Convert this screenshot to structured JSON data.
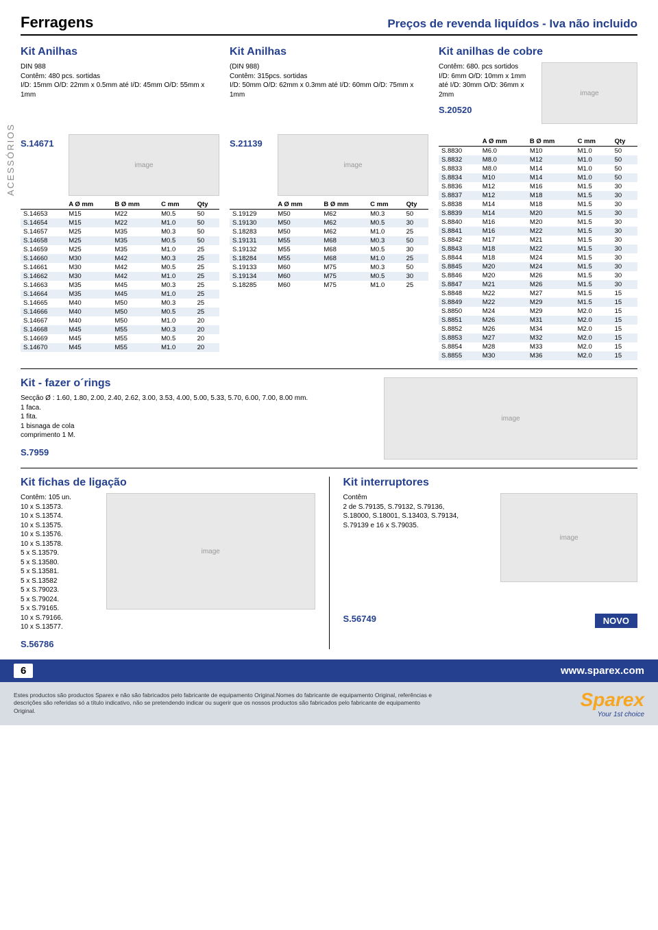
{
  "header": {
    "title": "Ferragens",
    "subtitle": "Preços de revenda liquídos - Iva não incluido"
  },
  "sidebar": "ACESSÓRIOS",
  "kit1": {
    "title": "Kit Anilhas",
    "desc": "DIN 988\nContêm: 480 pcs. sortidas\nI/D: 15mm O/D: 22mm x 0.5mm até I/D: 45mm O/D: 55mm x 1mm",
    "sku": "S.14671",
    "headers": [
      "",
      "A Ø mm",
      "B Ø mm",
      "C mm",
      "Qty"
    ],
    "rows": [
      [
        "S.14653",
        "M15",
        "M22",
        "M0.5",
        "50"
      ],
      [
        "S.14654",
        "M15",
        "M22",
        "M1.0",
        "50"
      ],
      [
        "S.14657",
        "M25",
        "M35",
        "M0.3",
        "50"
      ],
      [
        "S.14658",
        "M25",
        "M35",
        "M0.5",
        "50"
      ],
      [
        "S.14659",
        "M25",
        "M35",
        "M1.0",
        "25"
      ],
      [
        "S.14660",
        "M30",
        "M42",
        "M0.3",
        "25"
      ],
      [
        "S.14661",
        "M30",
        "M42",
        "M0.5",
        "25"
      ],
      [
        "S.14662",
        "M30",
        "M42",
        "M1.0",
        "25"
      ],
      [
        "S.14663",
        "M35",
        "M45",
        "M0.3",
        "25"
      ],
      [
        "S.14664",
        "M35",
        "M45",
        "M1.0",
        "25"
      ],
      [
        "S.14665",
        "M40",
        "M50",
        "M0.3",
        "25"
      ],
      [
        "S.14666",
        "M40",
        "M50",
        "M0.5",
        "25"
      ],
      [
        "S.14667",
        "M40",
        "M50",
        "M1.0",
        "20"
      ],
      [
        "S.14668",
        "M45",
        "M55",
        "M0.3",
        "20"
      ],
      [
        "S.14669",
        "M45",
        "M55",
        "M0.5",
        "20"
      ],
      [
        "S.14670",
        "M45",
        "M55",
        "M1.0",
        "20"
      ]
    ]
  },
  "kit2": {
    "title": "Kit Anilhas",
    "desc": "(DIN 988)\nContêm: 315pcs. sortidas\nI/D: 50mm O/D: 62mm x 0.3mm até I/D: 60mm O/D: 75mm x 1mm",
    "sku": "S.21139",
    "headers": [
      "",
      "A Ø mm",
      "B Ø mm",
      "C mm",
      "Qty"
    ],
    "rows": [
      [
        "S.19129",
        "M50",
        "M62",
        "M0.3",
        "50"
      ],
      [
        "S.19130",
        "M50",
        "M62",
        "M0.5",
        "30"
      ],
      [
        "S.18283",
        "M50",
        "M62",
        "M1.0",
        "25"
      ],
      [
        "S.19131",
        "M55",
        "M68",
        "M0.3",
        "50"
      ],
      [
        "S.19132",
        "M55",
        "M68",
        "M0.5",
        "30"
      ],
      [
        "S.18284",
        "M55",
        "M68",
        "M1.0",
        "25"
      ],
      [
        "S.19133",
        "M60",
        "M75",
        "M0.3",
        "50"
      ],
      [
        "S.19134",
        "M60",
        "M75",
        "M0.5",
        "30"
      ],
      [
        "S.18285",
        "M60",
        "M75",
        "M1.0",
        "25"
      ]
    ]
  },
  "kit3": {
    "title": "Kit anilhas de cobre",
    "desc": "Contêm: 680. pcs sortidos\nI/D: 6mm O/D: 10mm x 1mm até I/D: 30mm O/D: 36mm x 2mm",
    "sku": "S.20520",
    "headers": [
      "",
      "A Ø mm",
      "B Ø mm",
      "C mm",
      "Qty"
    ],
    "rows": [
      [
        "S.8830",
        "M6.0",
        "M10",
        "M1.0",
        "50"
      ],
      [
        "S.8832",
        "M8.0",
        "M12",
        "M1.0",
        "50"
      ],
      [
        "S.8833",
        "M8.0",
        "M14",
        "M1.0",
        "50"
      ],
      [
        "S.8834",
        "M10",
        "M14",
        "M1.0",
        "50"
      ],
      [
        "S.8836",
        "M12",
        "M16",
        "M1.5",
        "30"
      ],
      [
        "S.8837",
        "M12",
        "M18",
        "M1.5",
        "30"
      ],
      [
        "S.8838",
        "M14",
        "M18",
        "M1.5",
        "30"
      ],
      [
        "S.8839",
        "M14",
        "M20",
        "M1.5",
        "30"
      ],
      [
        "S.8840",
        "M16",
        "M20",
        "M1.5",
        "30"
      ],
      [
        "S.8841",
        "M16",
        "M22",
        "M1.5",
        "30"
      ],
      [
        "S.8842",
        "M17",
        "M21",
        "M1.5",
        "30"
      ],
      [
        "S.8843",
        "M18",
        "M22",
        "M1.5",
        "30"
      ],
      [
        "S.8844",
        "M18",
        "M24",
        "M1.5",
        "30"
      ],
      [
        "S.8845",
        "M20",
        "M24",
        "M1.5",
        "30"
      ],
      [
        "S.8846",
        "M20",
        "M26",
        "M1.5",
        "30"
      ],
      [
        "S.8847",
        "M21",
        "M26",
        "M1.5",
        "30"
      ],
      [
        "S.8848",
        "M22",
        "M27",
        "M1.5",
        "15"
      ],
      [
        "S.8849",
        "M22",
        "M29",
        "M1.5",
        "15"
      ],
      [
        "S.8850",
        "M24",
        "M29",
        "M2.0",
        "15"
      ],
      [
        "S.8851",
        "M26",
        "M31",
        "M2.0",
        "15"
      ],
      [
        "S.8852",
        "M26",
        "M34",
        "M2.0",
        "15"
      ],
      [
        "S.8853",
        "M27",
        "M32",
        "M2.0",
        "15"
      ],
      [
        "S.8854",
        "M28",
        "M33",
        "M2.0",
        "15"
      ],
      [
        "S.8855",
        "M30",
        "M36",
        "M2.0",
        "15"
      ]
    ]
  },
  "orings": {
    "title": "Kit - fazer o´rings",
    "desc": "Secção Ø : 1.60, 1.80, 2.00, 2.40, 2.62, 3.00, 3.53, 4.00, 5.00, 5.33, 5.70, 6.00, 7.00, 8.00 mm.\n1 faca.\n1 fita.\n1 bisnaga de cola\ncomprimento 1 M.",
    "sku": "S.7959"
  },
  "fichas": {
    "title": "Kit fichas de ligação",
    "desc": "Contêm: 105 un.",
    "items": [
      "10 x  S.13573.",
      "10 x S.13574.",
      "10 x S.13575.",
      "10 x S.13576.",
      "10 x S.13578.",
      "5 x S.13579.",
      "5 x S.13580.",
      "5 x S.13581.",
      "5 x S.13582",
      "5 x S.79023.",
      "5 x S.79024.",
      "5 x S.79165.",
      "10 x S.79166.",
      "10 x S.13577."
    ],
    "sku": "S.56786"
  },
  "interruptores": {
    "title": "Kit interruptores",
    "desc": "Contêm\n2 de S.79135, S.79132, S.79136,\nS.18000, S.18001, S.13403, S.79134,\nS.79139 e 16 x S.79035.",
    "sku": "S.56749",
    "novo": "NOVO"
  },
  "footer": {
    "pagenum": "6",
    "url": "www.sparex.com",
    "disclaimer": "Estes productos são productos Sparex e não são fabricados pelo fabricante de equipamento Original.Nomes do fabricante de equipamento Original, referências e descrições são referidas só a título indicativo, não se pretendendo indicar ou sugerir que os nossos productos são fabricados pelo fabricante de equipamento Original.",
    "logo": "Sparex",
    "tagline": "Your 1st choice"
  }
}
